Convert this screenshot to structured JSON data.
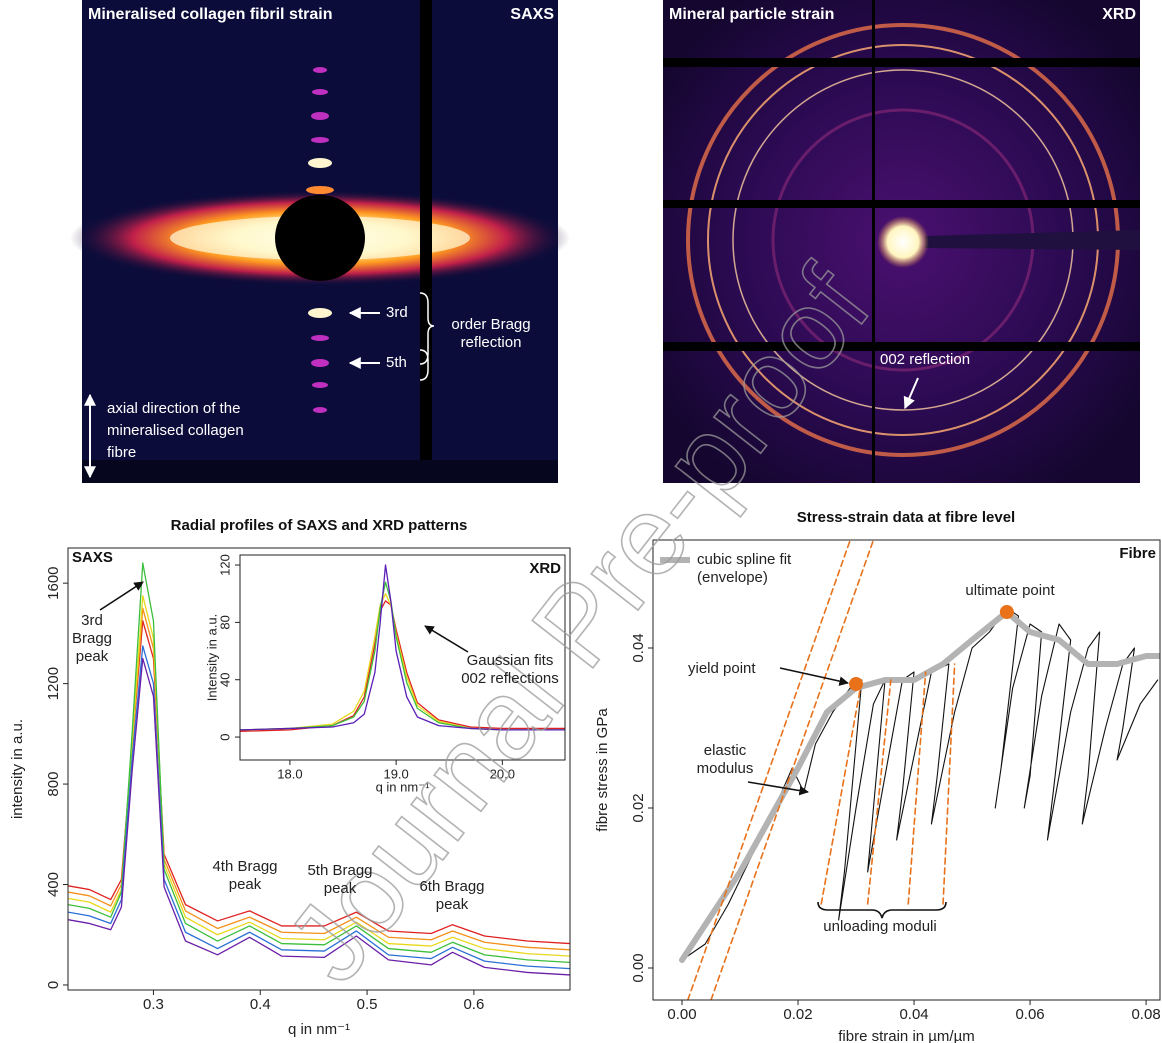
{
  "panels": [
    {
      "title": "Mineralised collagen fibril strain",
      "label": "SAXS",
      "annotations": [
        "3rd",
        "5th",
        "order Bragg reflection",
        "axial direction of the mineralised collagen fibre"
      ]
    },
    {
      "title": "Mineral particle strain",
      "label": "XRD",
      "annotations": [
        "002 reflection"
      ]
    }
  ],
  "watermark": "Journal Pre-proof",
  "chart_data": [
    {
      "type": "line",
      "title": "Radial profiles of SAXS and XRD patterns",
      "panel_label": "SAXS",
      "x_label": "q in nm⁻¹",
      "y_label": "intensity in a.u.",
      "x": [
        0.22,
        0.24,
        0.26,
        0.27,
        0.28,
        0.29,
        0.3,
        0.31,
        0.33,
        0.36,
        0.39,
        0.42,
        0.46,
        0.49,
        0.52,
        0.56,
        0.58,
        0.61,
        0.65,
        0.69
      ],
      "series": [
        {
          "color": "#e02020",
          "values": [
            395,
            380,
            340,
            420,
            950,
            1450,
            1300,
            520,
            320,
            255,
            295,
            235,
            235,
            290,
            215,
            205,
            240,
            195,
            175,
            165
          ]
        },
        {
          "color": "#f39019",
          "values": [
            370,
            355,
            315,
            400,
            950,
            1500,
            1340,
            500,
            295,
            225,
            270,
            210,
            205,
            270,
            190,
            180,
            215,
            170,
            150,
            140
          ]
        },
        {
          "color": "#e8d81c",
          "values": [
            345,
            330,
            290,
            380,
            960,
            1550,
            1380,
            480,
            270,
            200,
            250,
            185,
            180,
            250,
            165,
            155,
            190,
            145,
            125,
            115
          ]
        },
        {
          "color": "#3cbf3c",
          "values": [
            320,
            305,
            270,
            370,
            1000,
            1680,
            1450,
            460,
            245,
            175,
            235,
            165,
            160,
            235,
            145,
            130,
            170,
            120,
            100,
            90
          ]
        },
        {
          "color": "#2a6fd6",
          "values": [
            290,
            275,
            245,
            340,
            900,
            1350,
            1200,
            420,
            210,
            145,
            210,
            140,
            135,
            215,
            120,
            105,
            150,
            95,
            75,
            65
          ]
        },
        {
          "color": "#6a1fa8",
          "values": [
            260,
            245,
            220,
            310,
            850,
            1300,
            1150,
            390,
            175,
            120,
            190,
            115,
            110,
            195,
            100,
            80,
            130,
            70,
            50,
            40
          ]
        }
      ],
      "xlim": [
        0.22,
        0.69
      ],
      "xticks": [
        0.3,
        0.4,
        0.5,
        0.6
      ],
      "ylim": [
        -20,
        1740
      ],
      "yticks": [
        0,
        400,
        800,
        1200,
        1600
      ],
      "annotations": [
        "3rd Bragg peak",
        "4th Bragg peak",
        "5th Bragg peak",
        "6th Bragg peak"
      ],
      "inset": {
        "type": "line",
        "panel_label": "XRD",
        "x_label": "q in nm⁻¹",
        "y_label": "Intensity in a.u.",
        "x": [
          17.53,
          18.0,
          18.4,
          18.6,
          18.7,
          18.8,
          18.85,
          18.9,
          18.95,
          19.0,
          19.1,
          19.2,
          19.4,
          19.7,
          20.0,
          20.3,
          20.59
        ],
        "series": [
          {
            "color": "#e02020",
            "values": [
              4,
              5,
              8,
              15,
              28,
              65,
              88,
              95,
              92,
              75,
              45,
              24,
              12,
              7,
              6,
              6,
              6
            ]
          },
          {
            "color": "#e8d81c",
            "values": [
              5,
              6,
              9,
              18,
              32,
              70,
              92,
              100,
              92,
              72,
              42,
              22,
              11,
              6,
              5,
              5,
              5
            ]
          },
          {
            "color": "#3cbf3c",
            "values": [
              5,
              6,
              8,
              14,
              25,
              60,
              90,
              108,
              95,
              70,
              38,
              20,
              10,
              6,
              5,
              5,
              5
            ]
          },
          {
            "color": "#5a1fb8",
            "values": [
              5,
              6,
              7,
              10,
              16,
              45,
              80,
              120,
              95,
              60,
              28,
              14,
              8,
              6,
              5,
              5,
              5
            ]
          }
        ],
        "xlim": [
          17.53,
          20.59
        ],
        "xticks": [
          {
            "value": 18,
            "label": "18.0"
          },
          {
            "value": 19,
            "label": "19.0"
          },
          {
            "value": 20,
            "label": "20.0"
          }
        ],
        "ylim": [
          -16,
          127
        ],
        "yticks": [
          0,
          40,
          80,
          120
        ],
        "annotation": "Gaussian fits 002 reflections"
      }
    },
    {
      "type": "line",
      "title": "Stress-strain data at fibre level",
      "panel_label": "Fibre",
      "x_label": "fibre strain in µm/µm",
      "y_label": "fibre stress in GPa",
      "series": [
        {
          "color": "#111111",
          "x": [
            0.0,
            0.004,
            0.008,
            0.012,
            0.016,
            0.019,
            0.021,
            0.023,
            0.026,
            0.029,
            0.031,
            0.028,
            0.027,
            0.03,
            0.033,
            0.035,
            0.033,
            0.032,
            0.036,
            0.038,
            0.04,
            0.038,
            0.037,
            0.041,
            0.043,
            0.046,
            0.044,
            0.043,
            0.047,
            0.05,
            0.053,
            0.056,
            0.058,
            0.055,
            0.054,
            0.057,
            0.06,
            0.062,
            0.06,
            0.059,
            0.062,
            0.065,
            0.067,
            0.064,
            0.063,
            0.067,
            0.07,
            0.072,
            0.07,
            0.069,
            0.073,
            0.076,
            0.078,
            0.076,
            0.075,
            0.079,
            0.082
          ],
          "values": [
            0.001,
            0.003,
            0.008,
            0.014,
            0.02,
            0.025,
            0.022,
            0.028,
            0.032,
            0.035,
            0.036,
            0.012,
            0.006,
            0.02,
            0.033,
            0.036,
            0.02,
            0.012,
            0.028,
            0.036,
            0.037,
            0.022,
            0.016,
            0.03,
            0.037,
            0.038,
            0.024,
            0.018,
            0.032,
            0.04,
            0.042,
            0.045,
            0.044,
            0.025,
            0.02,
            0.035,
            0.043,
            0.042,
            0.024,
            0.02,
            0.034,
            0.043,
            0.041,
            0.022,
            0.016,
            0.032,
            0.04,
            0.042,
            0.024,
            0.018,
            0.03,
            0.038,
            0.04,
            0.03,
            0.026,
            0.033,
            0.036
          ]
        },
        {
          "name": "cubic spline fit (envelope)",
          "color": "#b3b3b3",
          "x": [
            0.0,
            0.01,
            0.02,
            0.025,
            0.03,
            0.035,
            0.04,
            0.045,
            0.05,
            0.056,
            0.06,
            0.065,
            0.07,
            0.075,
            0.08,
            0.0824
          ],
          "values": [
            0.001,
            0.012,
            0.025,
            0.032,
            0.035,
            0.036,
            0.036,
            0.038,
            0.041,
            0.0445,
            0.042,
            0.041,
            0.038,
            0.038,
            0.039,
            0.039
          ]
        },
        {
          "color": "#e8711a",
          "dashed": true,
          "x": [
            0.001,
            0.029
          ],
          "values": [
            -0.004,
            0.0535
          ]
        },
        {
          "color": "#e8711a",
          "dashed": true,
          "x": [
            0.005,
            0.033
          ],
          "values": [
            -0.004,
            0.0535
          ]
        },
        {
          "color": "#e8711a",
          "dashed": true,
          "x": [
            0.024,
            0.031
          ],
          "values": [
            0.008,
            0.036
          ]
        },
        {
          "color": "#e8711a",
          "dashed": true,
          "x": [
            0.032,
            0.036
          ],
          "values": [
            0.008,
            0.036
          ]
        },
        {
          "color": "#e8711a",
          "dashed": true,
          "x": [
            0.039,
            0.042
          ],
          "values": [
            0.008,
            0.037
          ]
        },
        {
          "color": "#e8711a",
          "dashed": true,
          "x": [
            0.045,
            0.047
          ],
          "values": [
            0.008,
            0.038
          ]
        }
      ],
      "points": [
        {
          "label": "yield point",
          "x": 0.03,
          "y": 0.0355
        },
        {
          "label": "ultimate point",
          "x": 0.056,
          "y": 0.0445
        }
      ],
      "point_color": "#e8711a",
      "annotations": [
        "elastic modulus",
        "unloading moduli"
      ],
      "xlim": [
        -0.005,
        0.0824
      ],
      "xticks": [
        {
          "value": 0,
          "label": "0.00"
        },
        {
          "value": 0.02,
          "label": "0.02"
        },
        {
          "value": 0.04,
          "label": "0.04"
        },
        {
          "value": 0.06,
          "label": "0.06"
        },
        {
          "value": 0.08,
          "label": "0.08"
        }
      ],
      "ylim": [
        -0.004,
        0.0535
      ],
      "yticks": [
        {
          "value": 0,
          "label": "0.00"
        },
        {
          "value": 0.02,
          "label": "0.02"
        },
        {
          "value": 0.04,
          "label": "0.04"
        }
      ]
    }
  ]
}
